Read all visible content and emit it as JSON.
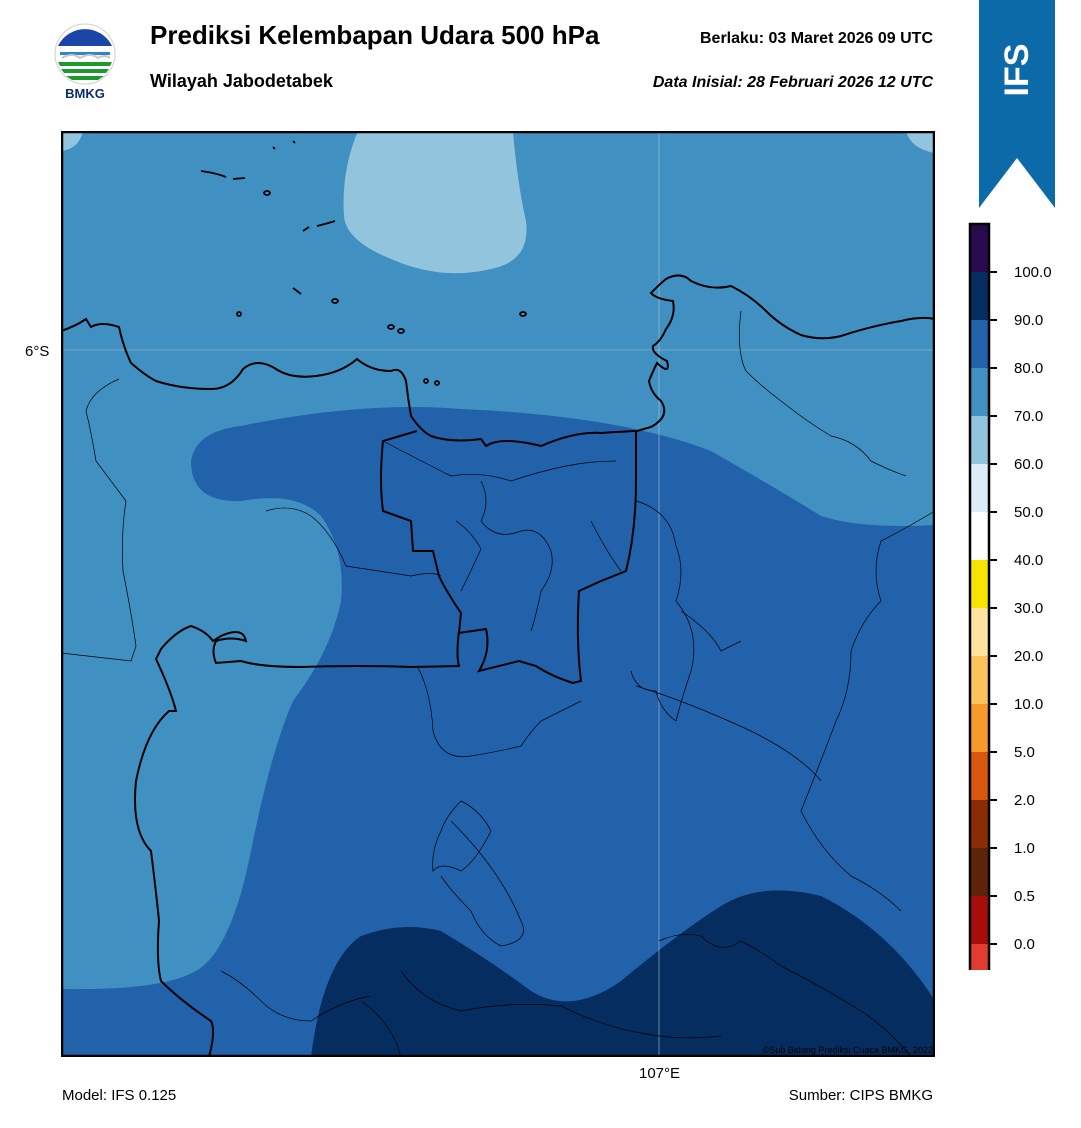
{
  "header": {
    "title": "Prediksi Kelembapan Udara 500 hPa",
    "region": "Wilayah Jabodetabek",
    "valid_label": "Berlaku:  03 Maret 2026 09 UTC",
    "init_label": "Data Inisial:  28 Februari 2026 12 UTC"
  },
  "logo": {
    "text": "BMKG",
    "icon": "bmkg-logo-icon"
  },
  "banner": {
    "text": "IFS",
    "color": "#0d6aa8"
  },
  "map": {
    "lat_label": "6°S",
    "lon_label": "107°E",
    "credit": "©Sub Bidang Prediksi Cuaca BMKG, 2022",
    "zone_colors": {
      "60_70": "#93c4de",
      "70_80": "#4190c2",
      "80_90": "#2262ab",
      "90_100": "#062d60"
    }
  },
  "footer": {
    "model": "Model: IFS 0.125",
    "source": "Sumber: CIPS BMKG"
  },
  "colorbar": {
    "labels": [
      "100.0",
      "90.0",
      "80.0",
      "70.0",
      "60.0",
      "50.0",
      "40.0",
      "30.0",
      "20.0",
      "10.0",
      "5.0",
      "2.0",
      "1.0",
      "0.5",
      "0.0"
    ],
    "colors": [
      "#2a0a4e",
      "#062d60",
      "#2262ab",
      "#4190c2",
      "#93c4de",
      "#dcebf5",
      "#ffffff",
      "#f5e400",
      "#fde2a0",
      "#fcc35c",
      "#f79a2e",
      "#d8560e",
      "#8a2d07",
      "#5e2409",
      "#a60e0e",
      "#e23b30"
    ]
  }
}
